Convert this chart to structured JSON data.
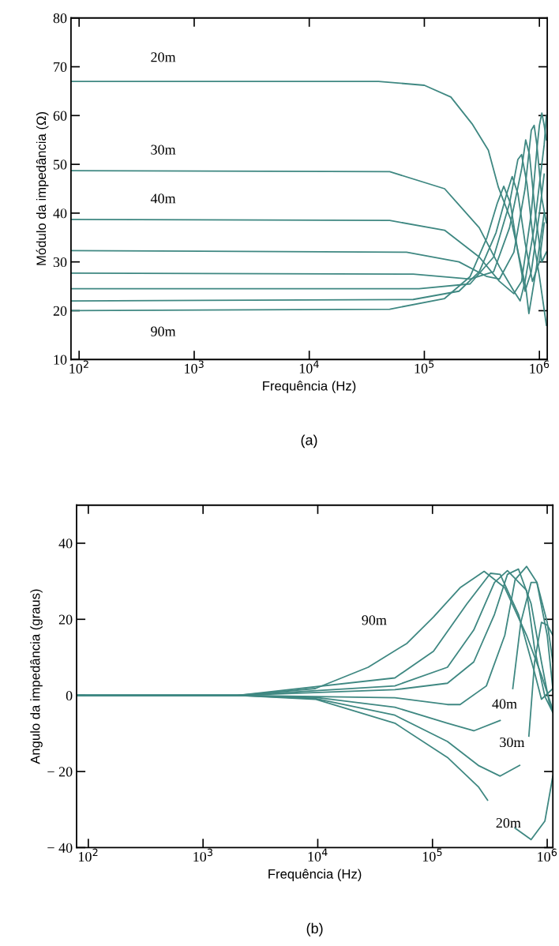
{
  "chart_data": [
    {
      "type": "line",
      "xlabel": "Frequência (Hz)",
      "ylabel": "Módulo da impedância (Ω)",
      "log": "x",
      "grid": false,
      "xlim": [
        85,
        1170000
      ],
      "ylim": [
        10,
        80
      ],
      "xticks": [
        {
          "value": 100,
          "label": "10$^{2}$"
        },
        {
          "value": 1000,
          "label": "10$^{3}$"
        },
        {
          "value": 10000,
          "label": "10$^{4}$"
        },
        {
          "value": 100000,
          "label": "10$^{5}$"
        },
        {
          "value": 1000000,
          "label": "10$^{6}$"
        }
      ],
      "yticks": [
        10,
        20,
        30,
        40,
        50,
        60,
        70,
        80
      ],
      "series": [
        {
          "name": "20m",
          "color": "#3f8882",
          "x": [
            85,
            40000,
            100000,
            170000,
            260000,
            360000,
            440000,
            570000,
            760000,
            810000,
            930000,
            1100000
          ],
          "values": [
            67,
            67,
            66.2,
            63.8,
            58.3,
            52.9,
            45.3,
            38.4,
            24.9,
            19.4,
            28,
            40
          ]
        },
        {
          "name": "30m",
          "color": "#3f8882",
          "x": [
            85,
            50000,
            150000,
            300000,
            450000,
            600000,
            680000,
            750000,
            900000,
            1100000,
            1150000
          ],
          "values": [
            48.7,
            48.5,
            45,
            37,
            29,
            24,
            22,
            26,
            37,
            54,
            60
          ]
        },
        {
          "name": "40m",
          "color": "#3f8882",
          "x": [
            85,
            50000,
            150000,
            300000,
            450000,
            600000,
            700000,
            850000,
            950000,
            1000000,
            1050000,
            1100000,
            1150000
          ],
          "values": [
            38.7,
            38.5,
            36.5,
            31,
            26,
            23.5,
            26,
            40,
            53,
            58,
            60.5,
            58,
            55
          ]
        },
        {
          "color": "#3f8882",
          "x": [
            85,
            70000,
            200000,
            350000,
            450000,
            600000,
            750000,
            850000,
            900000,
            950000,
            1050000,
            1150000
          ],
          "values": [
            32.3,
            32,
            30,
            27,
            26.5,
            32,
            45,
            57,
            58,
            54,
            43,
            38
          ]
        },
        {
          "color": "#3f8882",
          "x": [
            85,
            80000,
            250000,
            400000,
            550000,
            700000,
            760000,
            820000,
            920000,
            1050000,
            1150000
          ],
          "values": [
            27.7,
            27.5,
            26.5,
            28,
            37,
            49,
            55,
            52,
            40,
            30,
            32
          ]
        },
        {
          "color": "#3f8882",
          "x": [
            85,
            90000,
            250000,
            400000,
            550000,
            650000,
            700000,
            780000,
            880000,
            1000000,
            1150000
          ],
          "values": [
            24.5,
            24.5,
            25.5,
            31,
            42,
            51,
            52,
            46,
            35,
            27,
            17
          ]
        },
        {
          "color": "#3f8882",
          "x": [
            85,
            80000,
            200000,
            300000,
            420000,
            520000,
            580000,
            650000,
            750000,
            870000,
            1000000,
            1100000
          ],
          "values": [
            22,
            22.3,
            24,
            28,
            36,
            44,
            47.5,
            44,
            34,
            26,
            30,
            38
          ]
        },
        {
          "name": "90m",
          "color": "#3f8882",
          "x": [
            85,
            50000,
            150000,
            250000,
            350000,
            430000,
            490000,
            560000,
            650000,
            750000,
            850000,
            1000000,
            1100000
          ],
          "values": [
            20,
            20.3,
            22.5,
            27,
            35,
            42,
            45.5,
            42,
            32,
            24,
            28,
            40,
            48
          ]
        }
      ],
      "annotations": [
        "(a)"
      ]
    },
    {
      "type": "line",
      "xlabel": "Frequência (Hz)",
      "ylabel": "Angulo da impedância (graus)",
      "log": "x",
      "grid": false,
      "xlim": [
        79,
        1120000
      ],
      "ylim": [
        -40,
        50
      ],
      "xticks": [
        {
          "value": 100,
          "label": "10$^{2}$"
        },
        {
          "value": 1000,
          "label": "10$^{3}$"
        },
        {
          "value": 10000,
          "label": "10$^{4}$"
        },
        {
          "value": 100000,
          "label": "10$^{5}$"
        },
        {
          "value": 1000000,
          "label": "10$^{6}$"
        }
      ],
      "yticks": [
        {
          "value": -40,
          "label": "− 40"
        },
        {
          "value": -20,
          "label": "− 20"
        },
        0,
        20,
        40
      ],
      "series": [
        {
          "name": "20m",
          "color": "#3f8882",
          "x": [
            79,
            2000,
            9500,
            47000,
            135000,
            251000,
            302000,
            340000,
            525000,
            724000,
            955000,
            1120000
          ],
          "values": [
            0,
            0,
            -1,
            -7.3,
            -16.3,
            -24,
            -27.5,
            null,
            -34.9,
            -37.9,
            -33,
            -21.2
          ]
        },
        {
          "name": "30m",
          "color": "#3f8882",
          "x": [
            79,
            2000,
            9500,
            47000,
            135000,
            251000,
            389000,
            575000,
            630000,
            692000,
            776000,
            891000,
            1000000,
            1120000
          ],
          "values": [
            0,
            0,
            -0.8,
            -5.2,
            -12.1,
            -18.4,
            -21.2,
            -18.4,
            null,
            -10.7,
            8.8,
            19.2,
            18.5,
            15.8
          ]
        },
        {
          "name": "40m",
          "color": "#3f8882",
          "x": [
            79,
            2000,
            9500,
            47000,
            135000,
            229000,
            389000,
            450000,
            501000,
            589000,
            724000,
            813000,
            1000000,
            1120000
          ],
          "values": [
            0,
            0,
            -0.5,
            -3.1,
            -7.3,
            -9.3,
            -6.6,
            null,
            1.8,
            19.2,
            29.7,
            29.7,
            19.2,
            8.8
          ]
        },
        {
          "color": "#3f8882",
          "x": [
            79,
            2000,
            47000,
            135000,
            174000,
            295000,
            427000,
            525000,
            661000,
            813000,
            1000000,
            1120000
          ],
          "values": [
            0,
            0,
            -0.6,
            -2.4,
            -2.4,
            2.5,
            15.8,
            30.4,
            33.9,
            29.7,
            15.8,
            1.8
          ]
        },
        {
          "color": "#3f8882",
          "x": [
            79,
            2000,
            47000,
            135000,
            229000,
            347000,
            450000,
            562000,
            724000,
            891000,
            1050000,
            1120000
          ],
          "values": [
            0,
            0,
            1.5,
            3.2,
            8.8,
            21.3,
            31.8,
            33.2,
            24.1,
            8.8,
            -2.4,
            -3.8
          ]
        },
        {
          "color": "#3f8882",
          "x": [
            79,
            2000,
            47000,
            135000,
            229000,
            347000,
            450000,
            661000,
            776000,
            955000,
            1120000
          ],
          "values": [
            0,
            0,
            2.5,
            7.4,
            17.2,
            29.7,
            32.8,
            27.6,
            12.3,
            -0.3,
            -4.5
          ]
        },
        {
          "color": "#3f8882",
          "x": [
            79,
            2000,
            47000,
            102000,
            200000,
            320000,
            389000,
            562000,
            776000,
            891000,
            1120000
          ],
          "values": [
            0,
            0,
            4.6,
            11.6,
            24.1,
            32.1,
            31.8,
            21.3,
            6,
            -1,
            1.8
          ]
        },
        {
          "name": "90m",
          "color": "#3f8882",
          "x": [
            79,
            2000,
            9500,
            27500,
            60000,
            102000,
            174000,
            282000,
            427000,
            661000,
            891000,
            1120000
          ],
          "values": [
            0,
            0,
            1.8,
            7.4,
            13.7,
            20.6,
            28.3,
            32.6,
            28.3,
            15.8,
            5.3,
            -3.8
          ]
        }
      ],
      "annotations": [
        "(b)"
      ]
    }
  ]
}
